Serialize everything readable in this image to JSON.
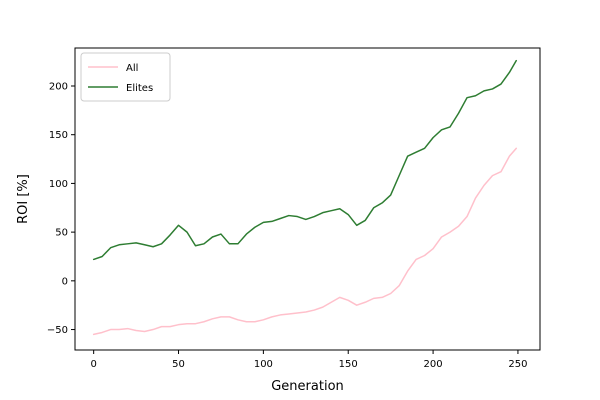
{
  "colors": {
    "all": "#ffc0cb",
    "elites": "#2e7d32",
    "axes": "#000000",
    "background": "#ffffff"
  },
  "chart_data": {
    "type": "line",
    "title": "",
    "xlabel": "Generation",
    "ylabel": "ROI [%]",
    "xlim": [
      -11,
      263
    ],
    "ylim": [
      -71,
      239
    ],
    "xticks": [
      0,
      50,
      100,
      150,
      200,
      250
    ],
    "yticks": [
      -50,
      0,
      50,
      100,
      150,
      200
    ],
    "grid": false,
    "legend_placement": "top-left",
    "series": [
      {
        "name": "All",
        "color": "#ffc0cb",
        "points": [
          [
            0,
            -55
          ],
          [
            5,
            -53
          ],
          [
            10,
            -50
          ],
          [
            15,
            -50
          ],
          [
            20,
            -49
          ],
          [
            25,
            -51
          ],
          [
            30,
            -52
          ],
          [
            35,
            -50
          ],
          [
            40,
            -47
          ],
          [
            45,
            -47
          ],
          [
            50,
            -45
          ],
          [
            55,
            -44
          ],
          [
            60,
            -44
          ],
          [
            65,
            -42
          ],
          [
            70,
            -39
          ],
          [
            75,
            -37
          ],
          [
            80,
            -37
          ],
          [
            85,
            -40
          ],
          [
            90,
            -42
          ],
          [
            95,
            -42
          ],
          [
            100,
            -40
          ],
          [
            105,
            -37
          ],
          [
            110,
            -35
          ],
          [
            115,
            -34
          ],
          [
            120,
            -33
          ],
          [
            125,
            -32
          ],
          [
            130,
            -30
          ],
          [
            135,
            -27
          ],
          [
            140,
            -22
          ],
          [
            145,
            -17
          ],
          [
            150,
            -20
          ],
          [
            155,
            -25
          ],
          [
            160,
            -22
          ],
          [
            165,
            -18
          ],
          [
            170,
            -17
          ],
          [
            175,
            -13
          ],
          [
            180,
            -5
          ],
          [
            185,
            10
          ],
          [
            190,
            22
          ],
          [
            195,
            26
          ],
          [
            200,
            33
          ],
          [
            205,
            45
          ],
          [
            210,
            50
          ],
          [
            215,
            56
          ],
          [
            220,
            66
          ],
          [
            225,
            85
          ],
          [
            230,
            98
          ],
          [
            235,
            108
          ],
          [
            240,
            112
          ],
          [
            245,
            128
          ],
          [
            249,
            136
          ]
        ]
      },
      {
        "name": "Elites",
        "color": "#2e7d32",
        "points": [
          [
            0,
            22
          ],
          [
            5,
            25
          ],
          [
            10,
            34
          ],
          [
            15,
            37
          ],
          [
            20,
            38
          ],
          [
            25,
            39
          ],
          [
            30,
            37
          ],
          [
            35,
            35
          ],
          [
            40,
            38
          ],
          [
            45,
            47
          ],
          [
            50,
            57
          ],
          [
            55,
            50
          ],
          [
            60,
            36
          ],
          [
            65,
            38
          ],
          [
            70,
            45
          ],
          [
            75,
            48
          ],
          [
            80,
            38
          ],
          [
            85,
            38
          ],
          [
            90,
            48
          ],
          [
            95,
            55
          ],
          [
            100,
            60
          ],
          [
            105,
            61
          ],
          [
            110,
            64
          ],
          [
            115,
            67
          ],
          [
            120,
            66
          ],
          [
            125,
            63
          ],
          [
            130,
            66
          ],
          [
            135,
            70
          ],
          [
            140,
            72
          ],
          [
            145,
            74
          ],
          [
            150,
            68
          ],
          [
            155,
            57
          ],
          [
            160,
            62
          ],
          [
            165,
            75
          ],
          [
            170,
            80
          ],
          [
            175,
            88
          ],
          [
            180,
            108
          ],
          [
            185,
            128
          ],
          [
            190,
            132
          ],
          [
            195,
            136
          ],
          [
            200,
            147
          ],
          [
            205,
            155
          ],
          [
            210,
            158
          ],
          [
            215,
            172
          ],
          [
            220,
            188
          ],
          [
            225,
            190
          ],
          [
            230,
            195
          ],
          [
            235,
            197
          ],
          [
            240,
            202
          ],
          [
            245,
            214
          ],
          [
            249,
            226
          ]
        ]
      }
    ]
  }
}
